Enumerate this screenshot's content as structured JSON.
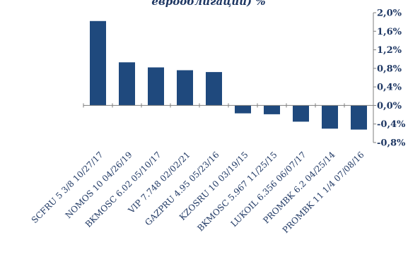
{
  "chart_data": {
    "type": "bar",
    "title": "еврооблигаций) %",
    "categories": [
      "SCFRU 5 3/8 10/27/17",
      "NOMOS 10 04/26/19",
      "BKMOSC 6.02 05/10/17",
      "VIP 7.748 02/02/21",
      "GAZPRU 4.95 05/23/16",
      "KZOSRU 10 03/19/15",
      "BKMOSC 5.967 11/25/15",
      "LUKOIL 6.356 06/07/17",
      "PROMBK 6.2 04/25/14",
      "PROMBK 11 1/4 07/08/16"
    ],
    "values": [
      1.82,
      0.93,
      0.82,
      0.76,
      0.72,
      -0.17,
      -0.19,
      -0.35,
      -0.5,
      -0.52
    ],
    "ylim": [
      -0.8,
      2.0
    ],
    "yticks": [
      "2,0%",
      "1,6%",
      "1,2%",
      "0,8%",
      "0,4%",
      "0,0%",
      "-0,4%",
      "-0,8%"
    ],
    "bar_color": "#1f497d",
    "axis_color": "#7f7f7f",
    "text_color": "#1f3864",
    "grid": false,
    "legend": "none"
  }
}
